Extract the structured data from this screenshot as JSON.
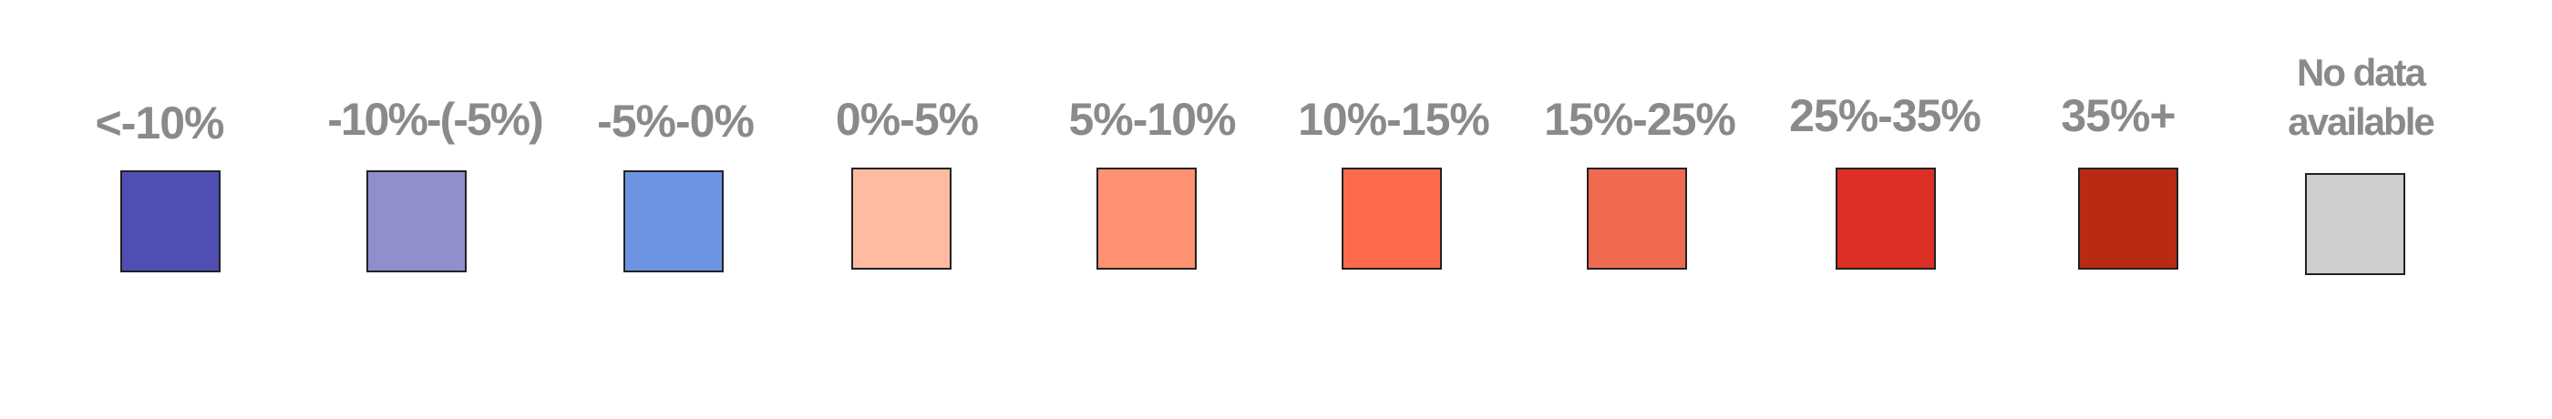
{
  "legend": {
    "items": [
      {
        "label": "<-10%",
        "color": "#4f4fb3"
      },
      {
        "label": "-10%-(-5%)",
        "color": "#918ecc"
      },
      {
        "label": "-5%-0%",
        "color": "#6c94e3"
      },
      {
        "label": "0%-5%",
        "color": "#fdbca2"
      },
      {
        "label": "5%-10%",
        "color": "#fe9273"
      },
      {
        "label": "10%-15%",
        "color": "#fc6a4b"
      },
      {
        "label": "15%-25%",
        "color": "#f06a4f"
      },
      {
        "label": "25%-35%",
        "color": "#dc2f26"
      },
      {
        "label": "35%+",
        "color": "#b92a12"
      },
      {
        "label": "No data available",
        "color": "#cecece"
      }
    ]
  }
}
